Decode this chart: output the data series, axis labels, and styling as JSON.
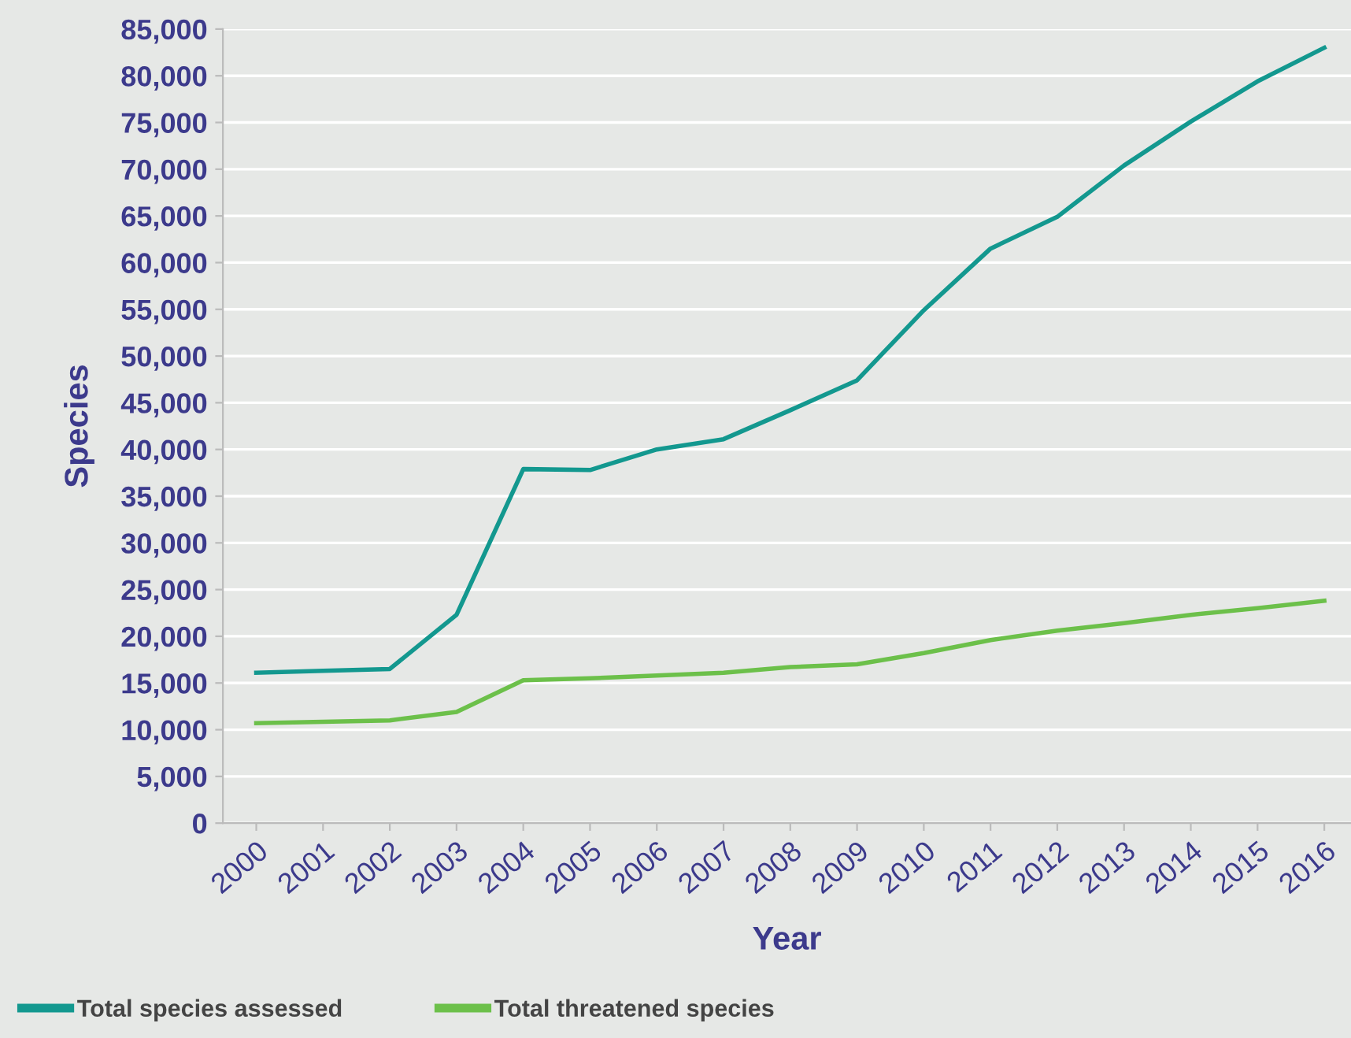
{
  "chart_data": {
    "type": "line",
    "xlabel": "Year",
    "ylabel": "Species",
    "categories": [
      "2000",
      "2001",
      "2002",
      "2003",
      "2004",
      "2005",
      "2006",
      "2007",
      "2008",
      "2009",
      "2010",
      "2011",
      "2012",
      "2013",
      "2014",
      "2015",
      "2016"
    ],
    "series": [
      {
        "name": "Total species assessed",
        "color": "#13988f",
        "values": [
          16100,
          16300,
          16500,
          22300,
          37900,
          37800,
          40000,
          41100,
          44200,
          47400,
          54900,
          61500,
          64900,
          70400,
          75100,
          79400,
          83000
        ]
      },
      {
        "name": "Total threatened species",
        "color": "#6cc04a",
        "values": [
          10700,
          10850,
          11000,
          11900,
          15300,
          15500,
          15800,
          16100,
          16700,
          17000,
          18200,
          19600,
          20600,
          21400,
          22300,
          23000,
          23800
        ]
      }
    ],
    "ylim": [
      0,
      85000
    ],
    "yticks": [
      {
        "value": 0,
        "label": "0"
      },
      {
        "value": 5000,
        "label": "5,000"
      },
      {
        "value": 10000,
        "label": "10,000"
      },
      {
        "value": 15000,
        "label": "15,000"
      },
      {
        "value": 20000,
        "label": "20,000"
      },
      {
        "value": 25000,
        "label": "25,000"
      },
      {
        "value": 30000,
        "label": "30,000"
      },
      {
        "value": 35000,
        "label": "35,000"
      },
      {
        "value": 40000,
        "label": "40,000"
      },
      {
        "value": 45000,
        "label": "45,000"
      },
      {
        "value": 50000,
        "label": "50,000"
      },
      {
        "value": 55000,
        "label": "55,000"
      },
      {
        "value": 60000,
        "label": "60,000"
      },
      {
        "value": 65000,
        "label": "65,000"
      },
      {
        "value": 70000,
        "label": "70,000"
      },
      {
        "value": 75000,
        "label": "75,000"
      },
      {
        "value": 80000,
        "label": "80,000"
      },
      {
        "value": 85000,
        "label": "85,000"
      }
    ],
    "grid": "y",
    "legend": "bottom",
    "marker": "none",
    "line_style": "solid"
  }
}
